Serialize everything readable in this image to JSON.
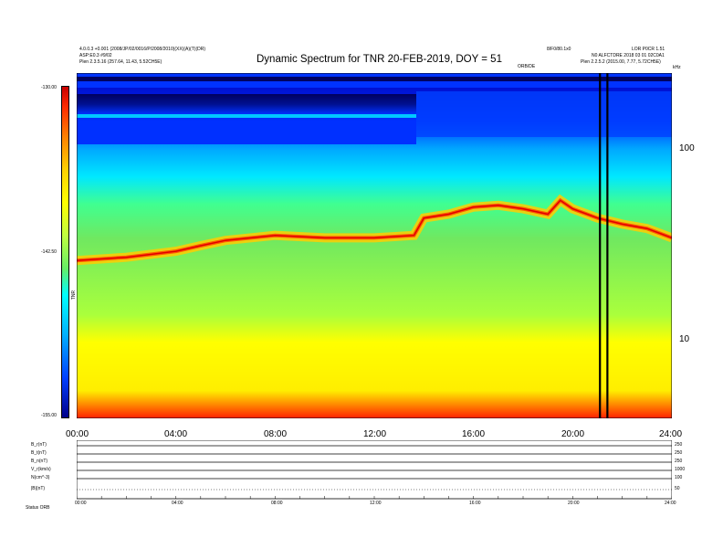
{
  "header": {
    "left_line1": "4.0.0.3 +0.001 (2008/JP/02/0016/P/2008/2010)(XX)(A)(T)(DR)",
    "left_line2": "ASP:E0.3 #9/02",
    "left_line3": "Plen 2.3.5.16 (257.64, 11.43, 5.52CH5E)",
    "title": "Dynamic Spectrum for TNR 20-FEB-2019, DOY = 51",
    "right_line1": "8/F0/80.1x0",
    "right_line2": "LOR P0CR 1.51",
    "right_line3": "N0 ALFCTDRE 2018 03 01 02C0A1",
    "right_line4": "Plen 2.2.5.2 (2015.00, 7.77, 5.72CH5E)",
    "small_center": "ORB/DE",
    "corner_right": "kHz"
  },
  "colorbar": {
    "ticks": [
      "-130.00",
      "-142.50",
      "-155.00"
    ],
    "label": "TNR"
  },
  "chart_data": {
    "type": "heatmap",
    "title": "Dynamic Spectrum for TNR 20-FEB-2019, DOY = 51",
    "xlabel": "",
    "ylabel": "",
    "x_ticks": [
      "00:00",
      "04:00",
      "08:00",
      "12:00",
      "16:00",
      "20:00",
      "24:00"
    ],
    "xlim": [
      0,
      24
    ],
    "y_scale": "log",
    "ylim": [
      4,
      240
    ],
    "y_ticks": [
      100,
      10
    ],
    "y_tick_labels": [
      "100",
      "10"
    ],
    "colorbar_range": [
      -155.0,
      -130.0
    ],
    "colormap": [
      "#00008b",
      "#0000ff",
      "#00a0ff",
      "#00ffff",
      "#80ff80",
      "#66dd33",
      "#ffff00",
      "#ff8000",
      "#ff0000"
    ],
    "ridge_frequency_khz": [
      {
        "t": 0.0,
        "f": 26
      },
      {
        "t": 2.0,
        "f": 27
      },
      {
        "t": 4.0,
        "f": 29
      },
      {
        "t": 5.0,
        "f": 31
      },
      {
        "t": 6.0,
        "f": 33
      },
      {
        "t": 8.0,
        "f": 35
      },
      {
        "t": 10.0,
        "f": 34
      },
      {
        "t": 12.0,
        "f": 34
      },
      {
        "t": 13.6,
        "f": 35
      },
      {
        "t": 14.0,
        "f": 43
      },
      {
        "t": 15.0,
        "f": 45
      },
      {
        "t": 16.0,
        "f": 49
      },
      {
        "t": 17.0,
        "f": 50
      },
      {
        "t": 18.0,
        "f": 48
      },
      {
        "t": 19.0,
        "f": 45
      },
      {
        "t": 19.5,
        "f": 53
      },
      {
        "t": 20.0,
        "f": 48
      },
      {
        "t": 21.0,
        "f": 43
      },
      {
        "t": 22.0,
        "f": 40
      },
      {
        "t": 23.0,
        "f": 38
      },
      {
        "t": 24.0,
        "f": 34
      }
    ],
    "data_gaps_hours": [
      21.1,
      21.4
    ]
  },
  "sub_panels": {
    "rows": [
      {
        "label": "B_r(nT)",
        "right": "250"
      },
      {
        "label": "B_t(nT)",
        "right": "250"
      },
      {
        "label": "B_n(nT)",
        "right": "250"
      },
      {
        "label": "V_r(km/s)",
        "right": "1000"
      },
      {
        "label": "N(cm^-3)",
        "right": "100"
      },
      {
        "label": "|B|(nT)",
        "right": "50"
      }
    ],
    "x_ticks": [
      "00:00",
      "04:00",
      "08:00",
      "12:00",
      "16:00",
      "20:00",
      "24:00"
    ],
    "footer": "Status  ORB"
  }
}
